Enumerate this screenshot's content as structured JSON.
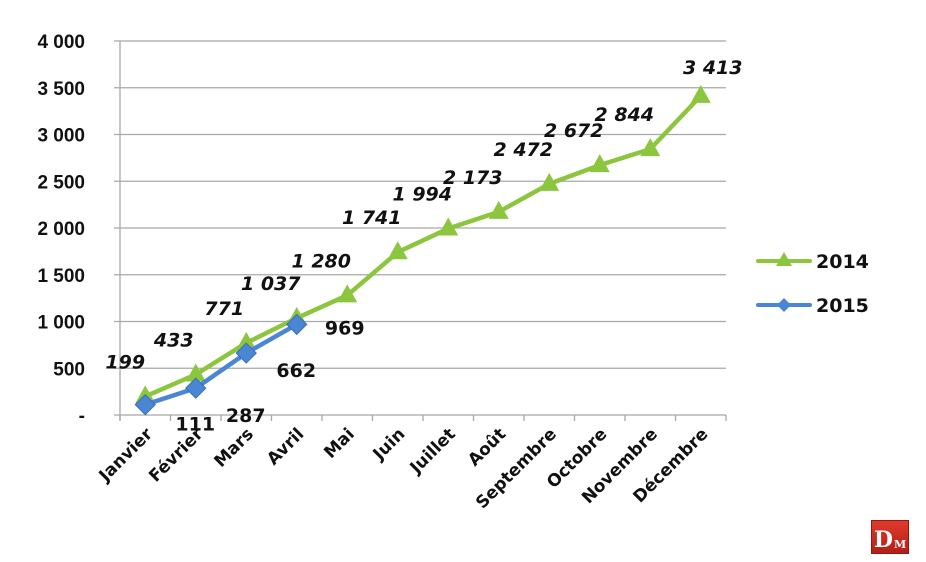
{
  "chart_data": {
    "type": "line",
    "title": "",
    "xlabel": "",
    "ylabel": "",
    "categories": [
      "Janvier",
      "Février",
      "Mars",
      "Avril",
      "Mai",
      "Juin",
      "Juillet",
      "Août",
      "Septembre",
      "Octobre",
      "Novembre",
      "Décembre"
    ],
    "series": [
      {
        "name": "2014",
        "color": "#8cc63f",
        "marker": "triangle",
        "values": [
          199,
          433,
          771,
          1037,
          1280,
          1741,
          1994,
          2173,
          2472,
          2672,
          2844,
          3413
        ],
        "labels": [
          "199",
          "433",
          "771",
          "1 037",
          "1 280",
          "1 741",
          "1 994",
          "2 173",
          "2 472",
          "2 672",
          "2 844",
          "3 413"
        ]
      },
      {
        "name": "2015",
        "color": "#4a86d4",
        "marker": "diamond",
        "values": [
          111,
          287,
          662,
          969
        ],
        "labels": [
          "111",
          "287",
          "662",
          "969"
        ]
      }
    ],
    "ylim": [
      0,
      4000
    ],
    "yticks": [
      0,
      500,
      1000,
      1500,
      2000,
      2500,
      3000,
      3500,
      4000
    ],
    "ytick_labels": [
      "-",
      "500",
      "1 000",
      "1 500",
      "2 000",
      "2 500",
      "3 000",
      "3 500",
      "4 000"
    ],
    "grid": true,
    "legend_position": "right"
  },
  "legend": {
    "items": [
      {
        "label": "2014",
        "color": "#8cc63f",
        "marker": "triangle"
      },
      {
        "label": "2015",
        "color": "#4a86d4",
        "marker": "diamond"
      }
    ]
  },
  "logo": {
    "big": "D",
    "small": "M",
    "color": "#c8281e"
  }
}
